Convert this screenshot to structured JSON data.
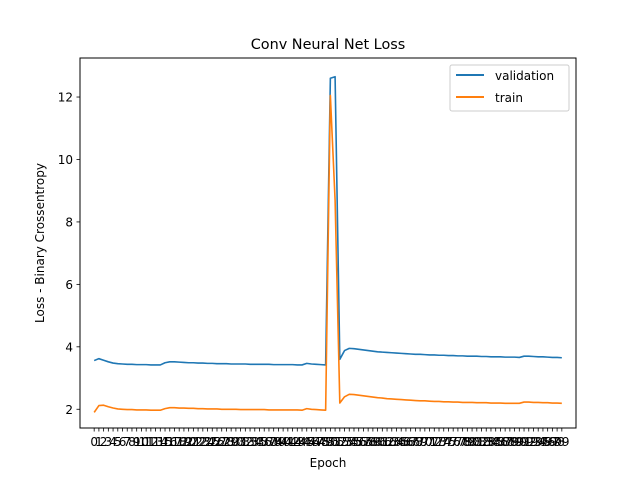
{
  "chart_data": {
    "type": "line",
    "title": "Conv Neural Net Loss",
    "xlabel": "Epoch",
    "ylabel": "Loss - Binary Crossentropy",
    "xlim": [
      -3,
      102
    ],
    "ylim": [
      1.4,
      13.25
    ],
    "yticks": [
      2,
      4,
      6,
      8,
      10,
      12
    ],
    "xticks": {
      "start": 0,
      "end": 99,
      "step": 1
    },
    "grid": false,
    "legend_position": "top-right",
    "series": [
      {
        "name": "validation",
        "color": "#1f77b4",
        "x": [
          0,
          1,
          2,
          3,
          4,
          5,
          6,
          7,
          8,
          9,
          10,
          11,
          12,
          13,
          14,
          15,
          16,
          17,
          18,
          19,
          20,
          21,
          22,
          23,
          24,
          25,
          26,
          27,
          28,
          29,
          30,
          31,
          32,
          33,
          34,
          35,
          36,
          37,
          38,
          39,
          40,
          41,
          42,
          43,
          44,
          45,
          46,
          47,
          48,
          49,
          50,
          51,
          52,
          53,
          54,
          55,
          56,
          57,
          58,
          59,
          60,
          61,
          62,
          63,
          64,
          65,
          66,
          67,
          68,
          69,
          70,
          71,
          72,
          73,
          74,
          75,
          76,
          77,
          78,
          79,
          80,
          81,
          82,
          83,
          84,
          85,
          86,
          87,
          88,
          89,
          90,
          91,
          92,
          93,
          94,
          95,
          96,
          97,
          98,
          99
        ],
        "values": [
          3.56,
          3.62,
          3.57,
          3.52,
          3.48,
          3.46,
          3.45,
          3.44,
          3.44,
          3.43,
          3.43,
          3.43,
          3.42,
          3.42,
          3.42,
          3.49,
          3.52,
          3.52,
          3.51,
          3.5,
          3.49,
          3.49,
          3.48,
          3.48,
          3.47,
          3.47,
          3.46,
          3.46,
          3.46,
          3.45,
          3.45,
          3.45,
          3.45,
          3.44,
          3.44,
          3.44,
          3.44,
          3.44,
          3.43,
          3.43,
          3.43,
          3.43,
          3.43,
          3.42,
          3.42,
          3.47,
          3.45,
          3.44,
          3.43,
          3.42,
          12.6,
          12.65,
          3.6,
          3.88,
          3.95,
          3.94,
          3.92,
          3.9,
          3.88,
          3.86,
          3.84,
          3.83,
          3.82,
          3.81,
          3.8,
          3.79,
          3.78,
          3.77,
          3.76,
          3.76,
          3.75,
          3.74,
          3.74,
          3.73,
          3.73,
          3.72,
          3.72,
          3.71,
          3.71,
          3.7,
          3.7,
          3.7,
          3.69,
          3.69,
          3.68,
          3.68,
          3.68,
          3.67,
          3.67,
          3.67,
          3.66,
          3.7,
          3.7,
          3.69,
          3.68,
          3.68,
          3.67,
          3.66,
          3.66,
          3.65
        ]
      },
      {
        "name": "train",
        "color": "#ff7f0e",
        "x": [
          0,
          1,
          2,
          3,
          4,
          5,
          6,
          7,
          8,
          9,
          10,
          11,
          12,
          13,
          14,
          15,
          16,
          17,
          18,
          19,
          20,
          21,
          22,
          23,
          24,
          25,
          26,
          27,
          28,
          29,
          30,
          31,
          32,
          33,
          34,
          35,
          36,
          37,
          38,
          39,
          40,
          41,
          42,
          43,
          44,
          45,
          46,
          47,
          48,
          49,
          50,
          51,
          52,
          53,
          54,
          55,
          56,
          57,
          58,
          59,
          60,
          61,
          62,
          63,
          64,
          65,
          66,
          67,
          68,
          69,
          70,
          71,
          72,
          73,
          74,
          75,
          76,
          77,
          78,
          79,
          80,
          81,
          82,
          83,
          84,
          85,
          86,
          87,
          88,
          89,
          90,
          91,
          92,
          93,
          94,
          95,
          96,
          97,
          98,
          99
        ],
        "values": [
          1.9,
          2.12,
          2.13,
          2.08,
          2.04,
          2.01,
          2.0,
          1.99,
          1.99,
          1.98,
          1.98,
          1.98,
          1.97,
          1.97,
          1.97,
          2.02,
          2.05,
          2.05,
          2.04,
          2.04,
          2.03,
          2.03,
          2.02,
          2.02,
          2.01,
          2.01,
          2.01,
          2.0,
          2.0,
          2.0,
          2.0,
          1.99,
          1.99,
          1.99,
          1.99,
          1.99,
          1.99,
          1.98,
          1.98,
          1.98,
          1.98,
          1.98,
          1.98,
          1.98,
          1.97,
          2.02,
          2.0,
          1.99,
          1.98,
          1.97,
          12.05,
          8.7,
          2.2,
          2.4,
          2.48,
          2.47,
          2.45,
          2.43,
          2.41,
          2.39,
          2.37,
          2.36,
          2.34,
          2.33,
          2.32,
          2.31,
          2.3,
          2.29,
          2.28,
          2.27,
          2.27,
          2.26,
          2.25,
          2.25,
          2.24,
          2.24,
          2.23,
          2.23,
          2.22,
          2.22,
          2.22,
          2.21,
          2.21,
          2.21,
          2.2,
          2.2,
          2.2,
          2.19,
          2.19,
          2.19,
          2.19,
          2.23,
          2.23,
          2.22,
          2.22,
          2.21,
          2.21,
          2.2,
          2.2,
          2.19
        ]
      }
    ]
  }
}
